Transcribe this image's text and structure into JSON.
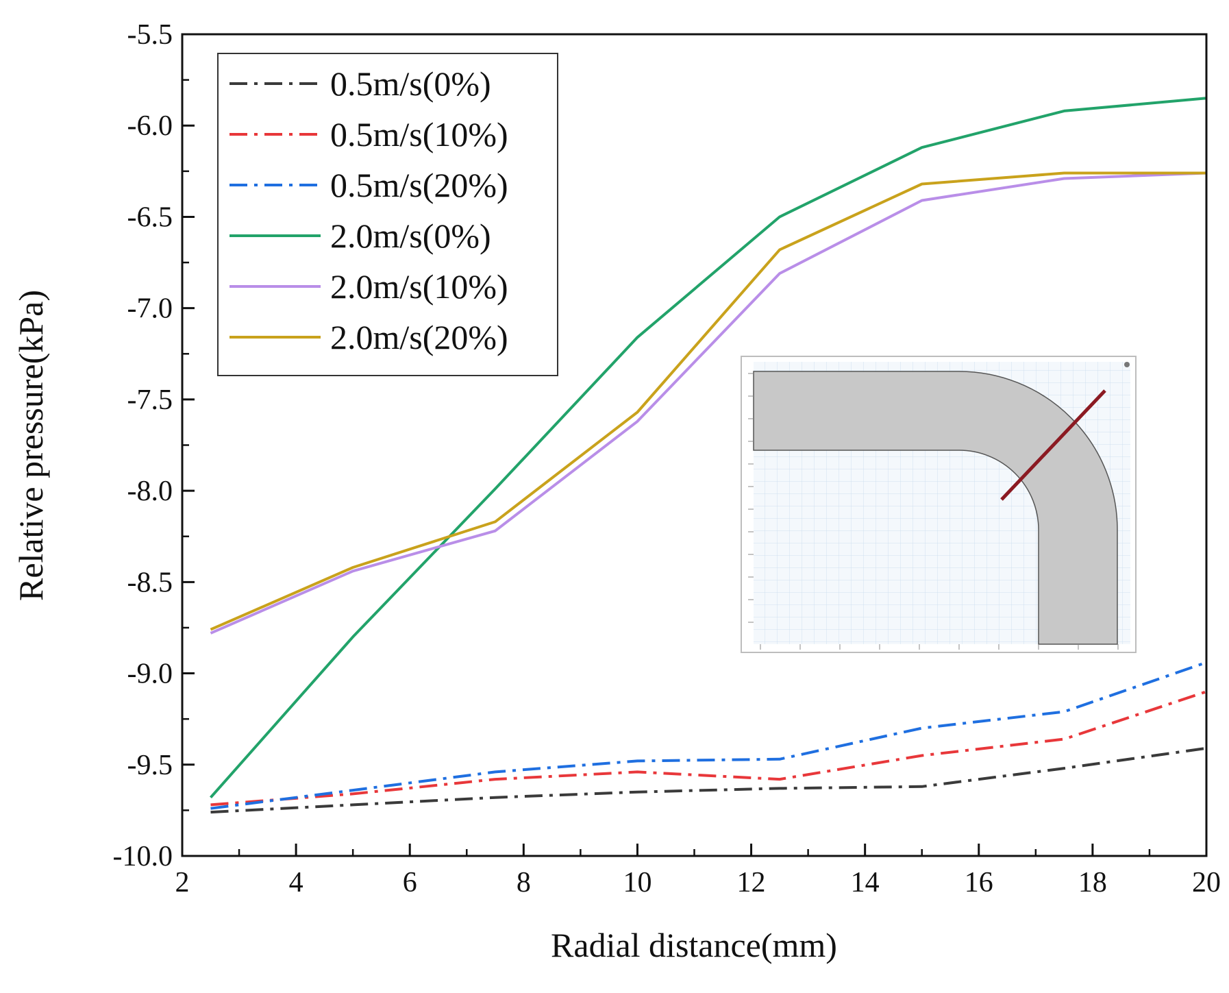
{
  "chart_data": {
    "type": "line",
    "title": "",
    "xlabel": "Radial distance(mm)",
    "ylabel": "Relative pressure(kPa)",
    "xlim": [
      2,
      20
    ],
    "ylim": [
      -10.0,
      -5.5
    ],
    "x_ticks": [
      2,
      4,
      6,
      8,
      10,
      12,
      14,
      16,
      18,
      20
    ],
    "x_tick_labels": [
      "2",
      "4",
      "6",
      "8",
      "10",
      "12",
      "14",
      "16",
      "18",
      "20"
    ],
    "y_ticks": [
      -10.0,
      -9.5,
      -9.0,
      -8.5,
      -8.0,
      -7.5,
      -7.0,
      -6.5,
      -6.0,
      -5.5
    ],
    "y_tick_labels": [
      "-10.0",
      "-9.5",
      "-9.0",
      "-8.5",
      "-8.0",
      "-7.5",
      "-7.0",
      "-6.5",
      "-6.0",
      "-5.5"
    ],
    "grid": false,
    "legend_position": "top-left",
    "x": [
      2.5,
      5,
      7.5,
      10,
      12.5,
      15,
      17.5,
      20
    ],
    "series": [
      {
        "name": "0.5m/s(0%)",
        "color": "#3a3a3a",
        "style": "dashdot",
        "values": [
          -9.76,
          -9.72,
          -9.68,
          -9.65,
          -9.63,
          -9.62,
          -9.52,
          -9.41
        ]
      },
      {
        "name": "0.5m/s(10%)",
        "color": "#e8373a",
        "style": "dashdot",
        "values": [
          -9.72,
          -9.66,
          -9.58,
          -9.54,
          -9.58,
          -9.45,
          -9.36,
          -9.1
        ]
      },
      {
        "name": "0.5m/s(20%)",
        "color": "#1f6fe0",
        "style": "dashdot",
        "values": [
          -9.74,
          -9.64,
          -9.54,
          -9.48,
          -9.47,
          -9.3,
          -9.21,
          -8.94
        ]
      },
      {
        "name": "2.0m/s(0%)",
        "color": "#22a36a",
        "style": "solid",
        "values": [
          -9.68,
          -8.8,
          -7.99,
          -7.16,
          -6.5,
          -6.12,
          -5.92,
          -5.85
        ]
      },
      {
        "name": "2.0m/s(10%)",
        "color": "#b98ee8",
        "style": "solid",
        "values": [
          -8.78,
          -8.44,
          -8.22,
          -7.62,
          -6.81,
          -6.41,
          -6.29,
          -6.26
        ]
      },
      {
        "name": "2.0m/s(20%)",
        "color": "#c9a21c",
        "style": "solid",
        "values": [
          -8.76,
          -8.42,
          -8.17,
          -7.57,
          -6.68,
          -6.32,
          -6.26,
          -6.26
        ]
      }
    ],
    "annotations": [
      {
        "type": "inset",
        "description_name": "pipe-elbow-geometry-inset"
      }
    ]
  }
}
